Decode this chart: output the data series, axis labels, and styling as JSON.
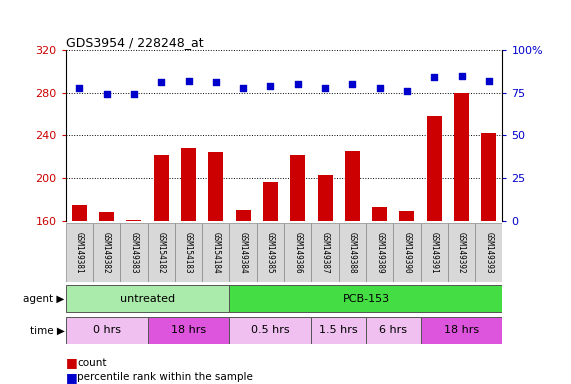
{
  "title": "GDS3954 / 228248_at",
  "samples": [
    "GSM149381",
    "GSM149382",
    "GSM149383",
    "GSM154182",
    "GSM154183",
    "GSM154184",
    "GSM149384",
    "GSM149385",
    "GSM149386",
    "GSM149387",
    "GSM149388",
    "GSM149389",
    "GSM149390",
    "GSM149391",
    "GSM149392",
    "GSM149393"
  ],
  "counts": [
    175,
    168,
    161,
    222,
    228,
    224,
    170,
    196,
    222,
    203,
    225,
    173,
    169,
    258,
    280,
    242
  ],
  "percentiles": [
    78,
    74,
    74,
    81,
    82,
    81,
    78,
    79,
    80,
    78,
    80,
    78,
    76,
    84,
    85,
    82
  ],
  "ylim_left": [
    160,
    320
  ],
  "ylim_right": [
    0,
    100
  ],
  "yticks_left": [
    160,
    200,
    240,
    280,
    320
  ],
  "yticks_right": [
    0,
    25,
    50,
    75,
    100
  ],
  "bar_color": "#cc0000",
  "dot_color": "#0000cc",
  "agent_groups": [
    {
      "label": "untreated",
      "start": 0,
      "end": 6,
      "color": "#aaeaaa"
    },
    {
      "label": "PCB-153",
      "start": 6,
      "end": 16,
      "color": "#44dd44"
    }
  ],
  "time_groups": [
    {
      "label": "0 hrs",
      "start": 0,
      "end": 3,
      "color": "#f0c0f0"
    },
    {
      "label": "18 hrs",
      "start": 3,
      "end": 6,
      "color": "#dd55dd"
    },
    {
      "label": "0.5 hrs",
      "start": 6,
      "end": 9,
      "color": "#f0c0f0"
    },
    {
      "label": "1.5 hrs",
      "start": 9,
      "end": 11,
      "color": "#f0c0f0"
    },
    {
      "label": "6 hrs",
      "start": 11,
      "end": 13,
      "color": "#f0c0f0"
    },
    {
      "label": "18 hrs",
      "start": 13,
      "end": 16,
      "color": "#dd55dd"
    }
  ],
  "bg_color": "#ffffff"
}
